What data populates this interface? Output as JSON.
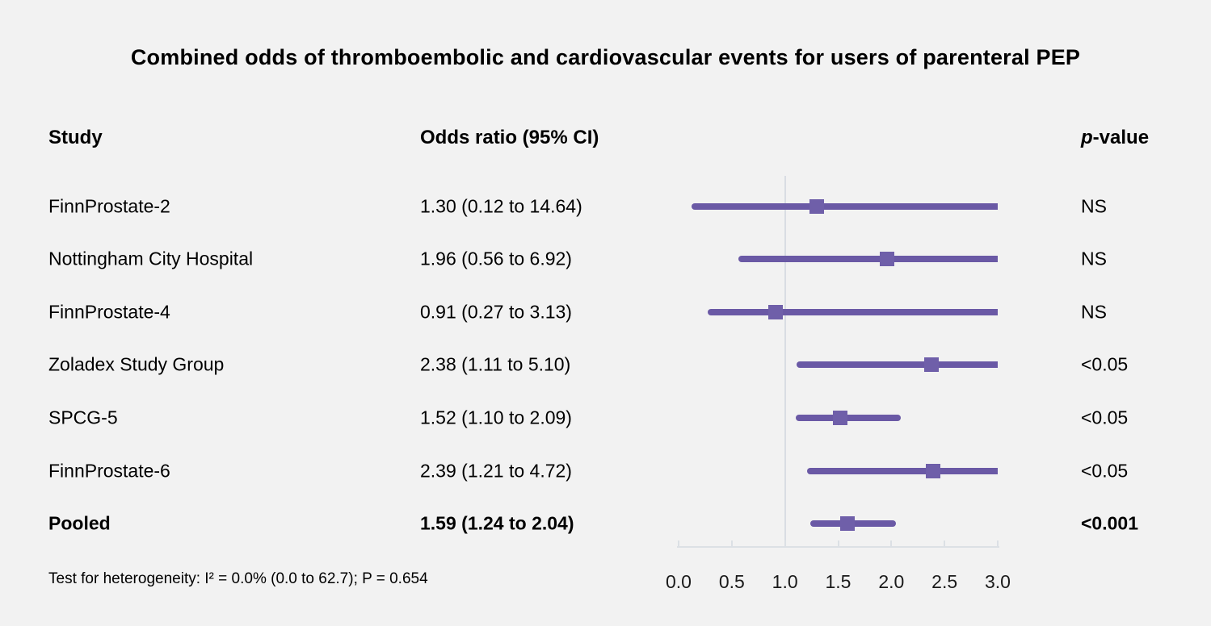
{
  "title": "Combined odds of thromboembolic and cardiovascular events for users of parenteral PEP",
  "header": {
    "study": "Study",
    "odds_ratio": "Odds ratio (95% CI)",
    "p_italic": "p",
    "p_rest": "-value"
  },
  "footnote": "Test for heterogeneity: I² = 0.0% (0.0 to 62.7); P = 0.654",
  "chart_data": {
    "type": "forest",
    "title": "Combined odds of thromboembolic and cardiovascular events for users of parenteral PEP",
    "x_range": [
      0.0,
      3.0
    ],
    "x_ticks": [
      "0.0",
      "0.5",
      "1.0",
      "1.5",
      "2.0",
      "2.5",
      "3.0"
    ],
    "x_tick_values": [
      0.0,
      0.5,
      1.0,
      1.5,
      2.0,
      2.5,
      3.0
    ],
    "reference_line_value": 1.0,
    "grid": false,
    "rows": [
      {
        "study": "FinnProstate-2",
        "or": 1.3,
        "ci_low": 0.12,
        "ci_high": 14.64,
        "or_label": "1.30 (0.12 to 14.64)",
        "p": "NS",
        "bold": false
      },
      {
        "study": "Nottingham City Hospital",
        "or": 1.96,
        "ci_low": 0.56,
        "ci_high": 6.92,
        "or_label": "1.96 (0.56 to 6.92)",
        "p": "NS",
        "bold": false
      },
      {
        "study": "FinnProstate-4",
        "or": 0.91,
        "ci_low": 0.27,
        "ci_high": 3.13,
        "or_label": "0.91 (0.27 to 3.13)",
        "p": "NS",
        "bold": false
      },
      {
        "study": "Zoladex Study Group",
        "or": 2.38,
        "ci_low": 1.11,
        "ci_high": 5.1,
        "or_label": "2.38 (1.11 to 5.10)",
        "p": "<0.05",
        "bold": false
      },
      {
        "study": "SPCG-5",
        "or": 1.52,
        "ci_low": 1.1,
        "ci_high": 2.09,
        "or_label": "1.52 (1.10 to 2.09)",
        "p": "<0.05",
        "bold": false
      },
      {
        "study": "FinnProstate-6",
        "or": 2.39,
        "ci_low": 1.21,
        "ci_high": 4.72,
        "or_label": "2.39 (1.21 to 4.72)",
        "p": "<0.05",
        "bold": false
      },
      {
        "study": "Pooled",
        "or": 1.59,
        "ci_low": 1.24,
        "ci_high": 2.04,
        "or_label": "1.59 (1.24 to 2.04)",
        "p": "<0.001",
        "bold": true
      }
    ],
    "colors": {
      "background": "#f2f2f2",
      "ci_line": "#6a59a5",
      "marker": "#6f5fa9",
      "reference_line": "#d9dde3",
      "axis": "#dce0e5",
      "text": "#000000"
    }
  }
}
